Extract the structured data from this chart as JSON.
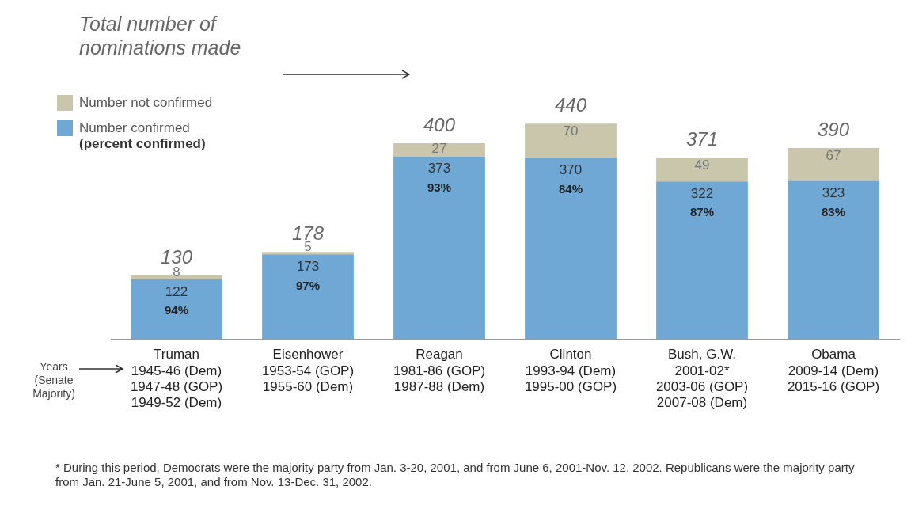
{
  "chart_data": {
    "type": "bar",
    "stacked": true,
    "tick_labels": "x",
    "grid": false,
    "legend": "top left",
    "data_labels": true,
    "categories": [
      "Truman\n1945-46 (Dem)\n1947-48 (GOP)\n1949-52 (Dem)",
      "Eisenhower\n1953-54 (GOP)\n1955-60 (Dem)",
      "Reagan\n1981-86 (GOP)\n1987-88 (Dem)",
      "Clinton\n1993-94 (Dem)\n1995-00 (GOP)",
      "Bush, G.W.\n2001-02*\n2003-06 (GOP)\n2007-08 (Dem)",
      "Obama\n2009-14 (Dem)\n2015-16 (GOP)"
    ],
    "series": [
      {
        "name": "Number confirmed\n(percent confirmed)",
        "color": "#6fa8d5",
        "values": [
          122,
          173,
          373,
          370,
          322,
          323
        ]
      },
      {
        "name": "Number not confirmed",
        "color": "#c9c6ac",
        "values": [
          8,
          5,
          27,
          70,
          49,
          67
        ]
      }
    ],
    "totals": [
      "130",
      "178",
      "400",
      "440",
      "371",
      "390"
    ],
    "annotations": [
      "Total number of nominations made",
      "Years (Senate Majority)",
      {
        "text": "94%",
        "x": "Truman\n1945-46 (Dem)\n1947-48 (GOP)\n1949-52 (Dem)",
        "y": 122
      },
      {
        "text": "97%",
        "x": "Eisenhower\n1953-54 (GOP)\n1955-60 (Dem)",
        "y": 173
      },
      {
        "text": "93%",
        "x": "Reagan\n1981-86 (GOP)\n1987-88 (Dem)",
        "y": 373
      },
      {
        "text": "84%",
        "x": "Clinton\n1993-94 (Dem)\n1995-00 (GOP)",
        "y": 370
      },
      {
        "text": "87%",
        "x": "Bush, G.W.\n2001-02*\n2003-06 (GOP)\n2007-08 (Dem)",
        "y": 322
      },
      {
        "text": "83%",
        "x": "Obama\n2009-14 (Dem)\n2015-16 (GOP)",
        "y": 323
      },
      "* During this period, Democrats were the majority party from Jan. 3-20, 2001, and from June 6, 2001-Nov. 12, 2002. Republicans were the majority party from Jan. 21-June 5, 2001, and from Nov. 13-Dec. 31, 2002."
    ]
  }
}
